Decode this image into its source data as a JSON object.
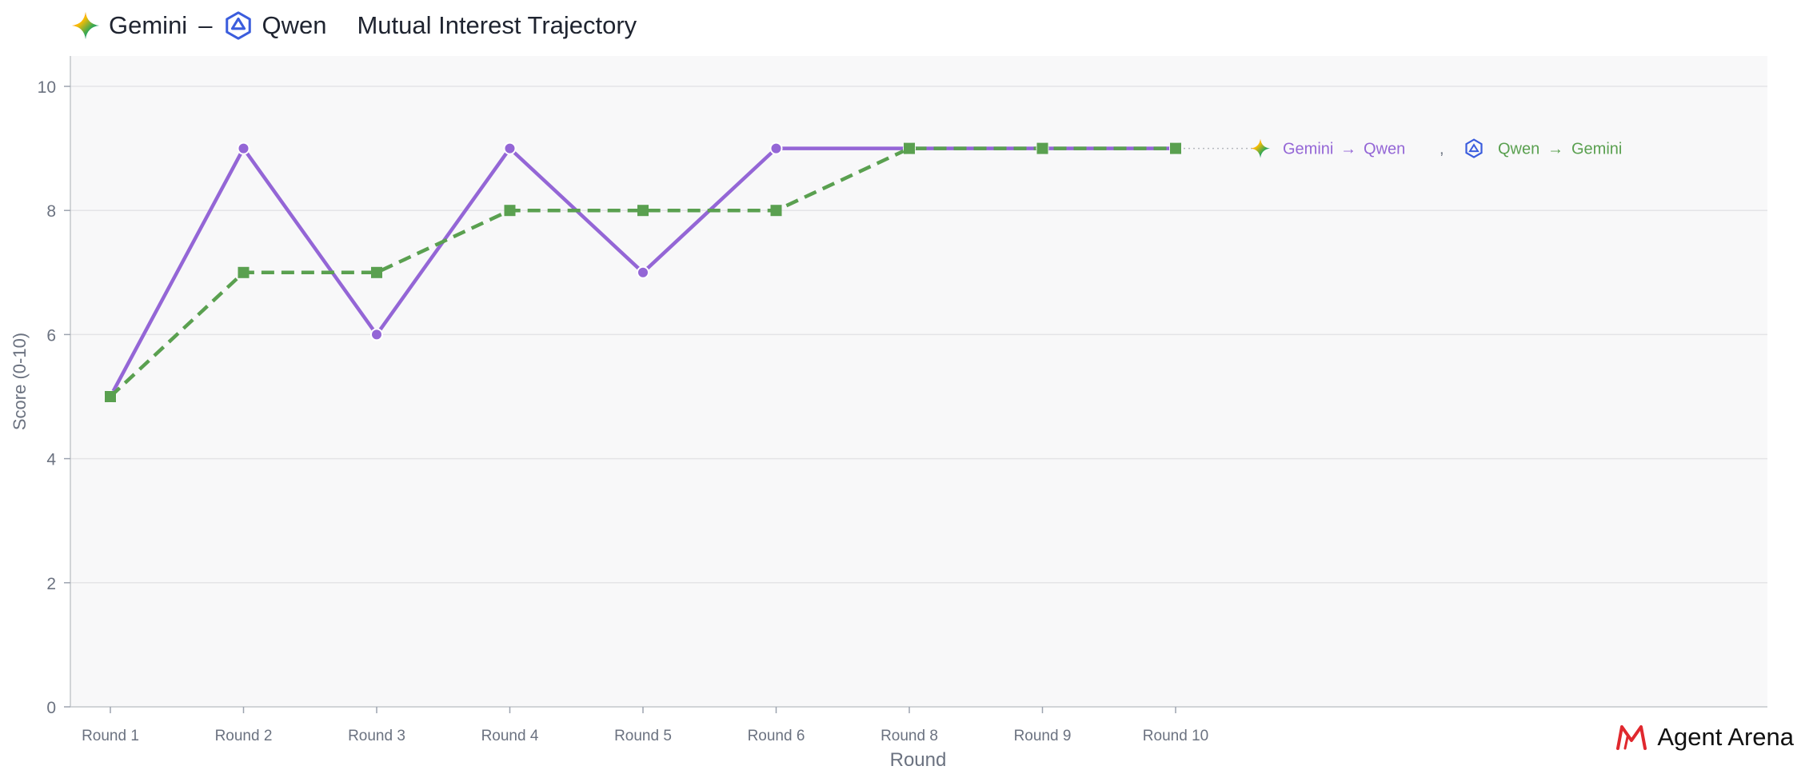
{
  "header": {
    "model_a": "Gemini",
    "separator": "–",
    "model_b": "Qwen",
    "title": "Mutual Interest Trajectory"
  },
  "legend": {
    "series_a_from": "Gemini",
    "series_a_to": "Qwen",
    "series_b_from": "Qwen",
    "series_b_to": "Gemini",
    "arrow": "→",
    "divider": ","
  },
  "brand": {
    "name": "Agent Arena"
  },
  "colors": {
    "series_a": "#9466d6",
    "series_b": "#5aa050",
    "plot_bg": "#f8f8f9",
    "grid": "#e4e4e7",
    "axis_text": "#6b7280"
  },
  "icons": {
    "model_a": "gemini-sparkle-icon",
    "model_b": "qwen-logo-icon",
    "brand": "agent-arena-logo-icon"
  },
  "chart_data": {
    "type": "line",
    "title": "Mutual Interest Trajectory",
    "xlabel": "Round",
    "ylabel": "Score (0-10)",
    "categories": [
      "Round 1",
      "Round 2",
      "Round 3",
      "Round 4",
      "Round 5",
      "Round 6",
      "Round 8",
      "Round 9",
      "Round 10"
    ],
    "ylim": [
      0,
      10
    ],
    "yticks": [
      0,
      2,
      4,
      6,
      8,
      10
    ],
    "grid": true,
    "legend_placement": "inline at end of lines, upper right",
    "series": [
      {
        "name": "Gemini → Qwen",
        "values": [
          5,
          9,
          6,
          9,
          7,
          9,
          9,
          9,
          9
        ],
        "style": "solid",
        "marker": "circle"
      },
      {
        "name": "Qwen → Gemini",
        "values": [
          5,
          7,
          7,
          8,
          8,
          8,
          9,
          9,
          9
        ],
        "style": "dashed",
        "marker": "square"
      }
    ]
  }
}
